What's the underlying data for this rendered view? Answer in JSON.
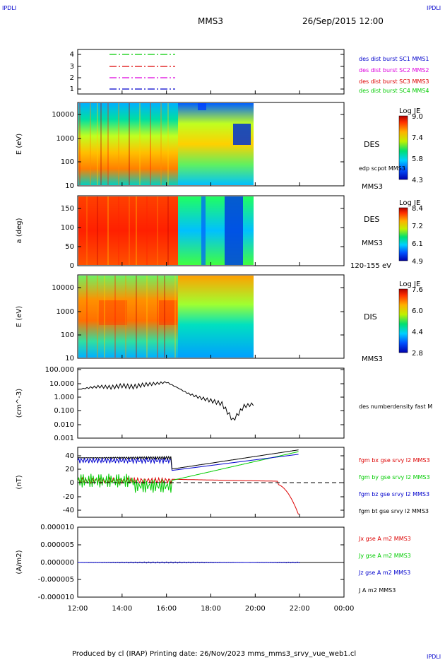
{
  "corners": {
    "top_left": "IPDLI",
    "top_right": "IPDLI",
    "bottom_right": "IPDLI"
  },
  "header": {
    "title": "MMS3",
    "date": "26/Sep/2015 12:00"
  },
  "footer": {
    "text": "Produced by cl (IRAP)   Printing date: 26/Nov/2023   mms_mms3_srvy_vue_web1.cl"
  },
  "colors": {
    "mms1": "#00cc00",
    "mms2": "#dd00dd",
    "mms3": "#dd0000",
    "mms4": "#0000cc",
    "black": "#000000"
  },
  "chart_data": [
    {
      "type": "line",
      "panel": "burst",
      "yticks": [
        "4",
        "3",
        "2",
        "1"
      ],
      "series": [
        {
          "name": "des dist burst SC1 MMS1",
          "color": "#0000cc",
          "y": 4
        },
        {
          "name": "des dist burst SC2 MMS2",
          "color": "#dd00dd",
          "y": 3
        },
        {
          "name": "des dist burst SC3 MMS3",
          "color": "#dd0000",
          "y": 2
        },
        {
          "name": "des dist burst SC4 MMS4",
          "color": "#00cc00",
          "y": 1
        }
      ],
      "legend_order_colors": [
        "#0000cc",
        "#dd00dd",
        "#dd0000",
        "#00cc00"
      ]
    },
    {
      "type": "heatmap",
      "panel": "des_energy",
      "ylabel": "E (eV)",
      "yticks": [
        "10000",
        "1000",
        "100",
        "10"
      ],
      "label": "DES",
      "extra_label": "edp scpot MMS3",
      "bottom_label": "MMS3",
      "colorbar": {
        "title": "Log JE",
        "ticks": [
          "9.0",
          "7.4",
          "5.8",
          "4.3"
        ]
      }
    },
    {
      "type": "heatmap",
      "panel": "des_pitch",
      "ylabel": "a (deg)",
      "yticks": [
        "150",
        "100",
        "50",
        "0"
      ],
      "label": "DES",
      "label2": "MMS3",
      "bottom_label": "120-155 eV",
      "colorbar": {
        "title": "Log JE",
        "ticks": [
          "8.4",
          "7.2",
          "6.1",
          "4.9"
        ]
      }
    },
    {
      "type": "heatmap",
      "panel": "dis_energy",
      "ylabel": "E (eV)",
      "yticks": [
        "10000",
        "1000",
        "100",
        "10"
      ],
      "label": "DIS",
      "bottom_label": "MMS3",
      "colorbar": {
        "title": "Log JE",
        "ticks": [
          "7.6",
          "6.0",
          "4.4",
          "2.8"
        ]
      }
    },
    {
      "type": "line",
      "panel": "density",
      "ylabel": "(cm^-3)",
      "yticks": [
        "100.000",
        "10.000",
        "1.000",
        "0.100",
        "0.010",
        "0.001"
      ],
      "series": [
        {
          "name": "des numberdensity fast M",
          "color": "#000000"
        }
      ],
      "x_hours": [
        0,
        0.5,
        1,
        1.5,
        2,
        2.5,
        3,
        3.5,
        4,
        4.5,
        5,
        5.5,
        6,
        6.5,
        7,
        7.5,
        8
      ],
      "values": [
        3,
        4,
        5,
        4.5,
        6,
        5,
        7,
        8,
        10,
        4,
        1.5,
        0.8,
        0.5,
        0.3,
        0.02,
        0.2,
        0.3
      ]
    },
    {
      "type": "line",
      "panel": "fgm",
      "ylabel": "(nT)",
      "yticks": [
        "40",
        "20",
        "0",
        "-20",
        "-40"
      ],
      "ylim": [
        -50,
        50
      ],
      "series": [
        {
          "name": "fgm bx gse srvy l2 MMS3",
          "color": "#dd0000"
        },
        {
          "name": "fgm by gse srvy l2 MMS3",
          "color": "#00cc00"
        },
        {
          "name": "fgm bz gse srvy l2 MMS3",
          "color": "#0000cc"
        },
        {
          "name": "fgm bt gse srvy l2 MMS3",
          "color": "#000000"
        }
      ]
    },
    {
      "type": "line",
      "panel": "current",
      "ylabel": "(A/m2)",
      "yticks": [
        "0.000010",
        "0.000005",
        "0.000000",
        "-0.000005",
        "-0.000010"
      ],
      "series": [
        {
          "name": "Jx gse A m2 MMS3",
          "color": "#dd0000"
        },
        {
          "name": "Jy gse A m2 MMS3",
          "color": "#00cc00"
        },
        {
          "name": "Jz gse A m2 MMS3",
          "color": "#0000cc"
        },
        {
          "name": "J A m2 MMS3",
          "color": "#000000"
        }
      ]
    }
  ],
  "xaxis": {
    "ticks": [
      "12:00",
      "14:00",
      "16:00",
      "18:00",
      "20:00",
      "22:00",
      "00:00"
    ]
  }
}
